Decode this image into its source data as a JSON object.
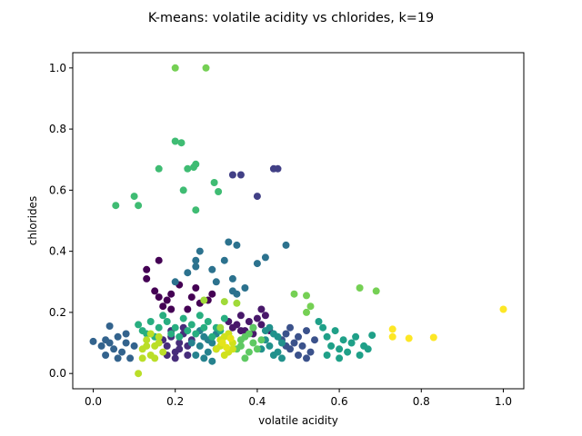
{
  "chart_data": {
    "type": "scatter",
    "title": "K-means: volatile acidity vs chlorides, k=19",
    "xlabel": "volatile acidity",
    "ylabel": "chlorides",
    "xlim": [
      -0.05,
      1.05
    ],
    "ylim": [
      -0.05,
      1.05
    ],
    "xticks": [
      0.0,
      0.2,
      0.4,
      0.6,
      0.8,
      1.0
    ],
    "yticks": [
      0.0,
      0.2,
      0.4,
      0.6,
      0.8,
      1.0
    ],
    "xtick_labels": [
      "0.0",
      "0.2",
      "0.4",
      "0.6",
      "0.8",
      "1.0"
    ],
    "ytick_labels": [
      "0.0",
      "0.2",
      "0.4",
      "0.6",
      "0.8",
      "1.0"
    ],
    "grid": false,
    "k": 19,
    "colormap": "viridis",
    "clusters": [
      {
        "id": 0,
        "color": "#440154",
        "points": [
          [
            0.13,
            0.34
          ],
          [
            0.13,
            0.31
          ],
          [
            0.16,
            0.37
          ],
          [
            0.15,
            0.27
          ],
          [
            0.16,
            0.25
          ],
          [
            0.18,
            0.24
          ],
          [
            0.19,
            0.26
          ],
          [
            0.21,
            0.29
          ],
          [
            0.23,
            0.21
          ],
          [
            0.24,
            0.25
          ],
          [
            0.25,
            0.28
          ],
          [
            0.26,
            0.23
          ],
          [
            0.28,
            0.24
          ],
          [
            0.29,
            0.26
          ],
          [
            0.19,
            0.21
          ],
          [
            0.17,
            0.22
          ]
        ]
      },
      {
        "id": 1,
        "color": "#48186a",
        "points": [
          [
            0.35,
            0.16
          ],
          [
            0.36,
            0.19
          ],
          [
            0.37,
            0.14
          ],
          [
            0.38,
            0.17
          ],
          [
            0.39,
            0.15
          ],
          [
            0.4,
            0.18
          ],
          [
            0.41,
            0.16
          ],
          [
            0.39,
            0.13
          ],
          [
            0.36,
            0.14
          ],
          [
            0.42,
            0.19
          ],
          [
            0.33,
            0.17
          ],
          [
            0.34,
            0.15
          ],
          [
            0.41,
            0.21
          ],
          [
            0.43,
            0.14
          ]
        ]
      },
      {
        "id": 2,
        "color": "#472d7b",
        "points": [
          [
            0.18,
            0.09
          ],
          [
            0.19,
            0.12
          ],
          [
            0.2,
            0.07
          ],
          [
            0.21,
            0.1
          ],
          [
            0.22,
            0.13
          ],
          [
            0.2,
            0.05
          ],
          [
            0.23,
            0.09
          ],
          [
            0.24,
            0.11
          ],
          [
            0.18,
            0.06
          ],
          [
            0.22,
            0.15
          ],
          [
            0.19,
            0.14
          ],
          [
            0.21,
            0.08
          ],
          [
            0.17,
            0.11
          ],
          [
            0.23,
            0.06
          ]
        ]
      },
      {
        "id": 3,
        "color": "#424086",
        "points": [
          [
            0.34,
            0.65
          ],
          [
            0.36,
            0.65
          ],
          [
            0.44,
            0.67
          ],
          [
            0.45,
            0.67
          ],
          [
            0.4,
            0.58
          ]
        ]
      },
      {
        "id": 4,
        "color": "#3b528b",
        "points": [
          [
            0.46,
            0.11
          ],
          [
            0.47,
            0.13
          ],
          [
            0.48,
            0.08
          ],
          [
            0.49,
            0.1
          ],
          [
            0.5,
            0.12
          ],
          [
            0.51,
            0.09
          ],
          [
            0.52,
            0.14
          ],
          [
            0.53,
            0.07
          ],
          [
            0.5,
            0.06
          ],
          [
            0.48,
            0.15
          ],
          [
            0.54,
            0.11
          ],
          [
            0.47,
            0.09
          ],
          [
            0.52,
            0.05
          ]
        ]
      },
      {
        "id": 5,
        "color": "#33638d",
        "points": [
          [
            0.0,
            0.105
          ],
          [
            0.02,
            0.09
          ],
          [
            0.03,
            0.06
          ],
          [
            0.04,
            0.1
          ],
          [
            0.04,
            0.155
          ],
          [
            0.05,
            0.08
          ],
          [
            0.06,
            0.12
          ],
          [
            0.07,
            0.07
          ],
          [
            0.08,
            0.1
          ],
          [
            0.09,
            0.05
          ],
          [
            0.1,
            0.09
          ],
          [
            0.03,
            0.11
          ],
          [
            0.06,
            0.05
          ],
          [
            0.08,
            0.13
          ]
        ]
      },
      {
        "id": 6,
        "color": "#2c728e",
        "points": [
          [
            0.33,
            0.43
          ],
          [
            0.35,
            0.42
          ],
          [
            0.26,
            0.4
          ],
          [
            0.25,
            0.37
          ],
          [
            0.25,
            0.35
          ],
          [
            0.32,
            0.37
          ],
          [
            0.4,
            0.36
          ],
          [
            0.42,
            0.38
          ],
          [
            0.47,
            0.42
          ],
          [
            0.34,
            0.31
          ],
          [
            0.23,
            0.33
          ],
          [
            0.29,
            0.34
          ],
          [
            0.2,
            0.3
          ],
          [
            0.34,
            0.27
          ],
          [
            0.35,
            0.26
          ],
          [
            0.37,
            0.28
          ],
          [
            0.3,
            0.3
          ]
        ]
      },
      {
        "id": 7,
        "color": "#26828e",
        "points": [
          [
            0.26,
            0.09
          ],
          [
            0.27,
            0.12
          ],
          [
            0.28,
            0.07
          ],
          [
            0.29,
            0.1
          ],
          [
            0.25,
            0.06
          ],
          [
            0.3,
            0.13
          ],
          [
            0.27,
            0.05
          ],
          [
            0.26,
            0.14
          ],
          [
            0.28,
            0.11
          ],
          [
            0.24,
            0.1
          ],
          [
            0.29,
            0.04
          ],
          [
            0.3,
            0.08
          ]
        ]
      },
      {
        "id": 8,
        "color": "#21918c",
        "points": [
          [
            0.42,
            0.11
          ],
          [
            0.43,
            0.09
          ],
          [
            0.44,
            0.13
          ],
          [
            0.45,
            0.07
          ],
          [
            0.46,
            0.1
          ],
          [
            0.43,
            0.15
          ],
          [
            0.41,
            0.08
          ],
          [
            0.45,
            0.12
          ],
          [
            0.44,
            0.06
          ],
          [
            0.42,
            0.14
          ],
          [
            0.46,
            0.05
          ]
        ]
      },
      {
        "id": 9,
        "color": "#1fa088",
        "points": [
          [
            0.55,
            0.17
          ],
          [
            0.56,
            0.15
          ],
          [
            0.57,
            0.12
          ],
          [
            0.58,
            0.09
          ],
          [
            0.59,
            0.14
          ],
          [
            0.6,
            0.08
          ],
          [
            0.61,
            0.11
          ],
          [
            0.62,
            0.07
          ],
          [
            0.63,
            0.1
          ],
          [
            0.65,
            0.06
          ],
          [
            0.66,
            0.09
          ],
          [
            0.67,
            0.08
          ],
          [
            0.6,
            0.05
          ],
          [
            0.64,
            0.12
          ],
          [
            0.68,
            0.125
          ],
          [
            0.57,
            0.06
          ]
        ]
      },
      {
        "id": 10,
        "color": "#28ae80",
        "points": [
          [
            0.11,
            0.16
          ],
          [
            0.12,
            0.14
          ],
          [
            0.14,
            0.17
          ],
          [
            0.16,
            0.15
          ],
          [
            0.17,
            0.19
          ],
          [
            0.18,
            0.17
          ],
          [
            0.2,
            0.15
          ],
          [
            0.22,
            0.18
          ],
          [
            0.24,
            0.16
          ],
          [
            0.26,
            0.19
          ],
          [
            0.28,
            0.17
          ],
          [
            0.3,
            0.15
          ],
          [
            0.32,
            0.18
          ],
          [
            0.13,
            0.13
          ],
          [
            0.15,
            0.12
          ],
          [
            0.19,
            0.13
          ],
          [
            0.21,
            0.12
          ],
          [
            0.23,
            0.14
          ],
          [
            0.25,
            0.13
          ],
          [
            0.27,
            0.15
          ],
          [
            0.29,
            0.12
          ],
          [
            0.31,
            0.14
          ],
          [
            0.33,
            0.13
          ]
        ]
      },
      {
        "id": 11,
        "color": "#3fbc73",
        "points": [
          [
            0.11,
            0.55
          ],
          [
            0.055,
            0.55
          ],
          [
            0.1,
            0.58
          ],
          [
            0.16,
            0.67
          ],
          [
            0.2,
            0.76
          ],
          [
            0.215,
            0.755
          ],
          [
            0.23,
            0.67
          ],
          [
            0.245,
            0.675
          ],
          [
            0.25,
            0.685
          ],
          [
            0.22,
            0.6
          ],
          [
            0.25,
            0.535
          ],
          [
            0.295,
            0.625
          ],
          [
            0.305,
            0.595
          ]
        ]
      },
      {
        "id": 12,
        "color": "#5ec962",
        "points": [
          [
            0.36,
            0.09
          ],
          [
            0.37,
            0.12
          ],
          [
            0.38,
            0.07
          ],
          [
            0.39,
            0.1
          ],
          [
            0.38,
            0.13
          ],
          [
            0.4,
            0.08
          ],
          [
            0.37,
            0.05
          ],
          [
            0.39,
            0.15
          ],
          [
            0.36,
            0.11
          ],
          [
            0.41,
            0.11
          ],
          [
            0.35,
            0.08
          ]
        ]
      },
      {
        "id": 13,
        "color": "#75d054",
        "points": [
          [
            0.2,
            1.0
          ],
          [
            0.275,
            1.0
          ],
          [
            0.49,
            0.26
          ],
          [
            0.52,
            0.255
          ],
          [
            0.53,
            0.22
          ],
          [
            0.52,
            0.2
          ],
          [
            0.65,
            0.28
          ],
          [
            0.69,
            0.27
          ]
        ]
      },
      {
        "id": 14,
        "color": "#a0da39",
        "points": [
          [
            0.32,
            0.235
          ],
          [
            0.35,
            0.23
          ],
          [
            0.27,
            0.24
          ],
          [
            0.31,
            0.15
          ]
        ]
      },
      {
        "id": 15,
        "color": "#bade28",
        "points": [
          [
            0.11,
            0.0
          ],
          [
            0.12,
            0.08
          ],
          [
            0.13,
            0.11
          ],
          [
            0.14,
            0.06
          ],
          [
            0.15,
            0.09
          ],
          [
            0.16,
            0.12
          ],
          [
            0.17,
            0.07
          ],
          [
            0.14,
            0.13
          ],
          [
            0.12,
            0.05
          ],
          [
            0.16,
            0.1
          ],
          [
            0.13,
            0.09
          ],
          [
            0.15,
            0.05
          ]
        ]
      },
      {
        "id": 16,
        "color": "#d0e11c",
        "points": [
          [
            0.31,
            0.09
          ],
          [
            0.32,
            0.12
          ],
          [
            0.33,
            0.07
          ],
          [
            0.34,
            0.1
          ],
          [
            0.32,
            0.06
          ],
          [
            0.33,
            0.13
          ],
          [
            0.31,
            0.11
          ],
          [
            0.3,
            0.08
          ],
          [
            0.34,
            0.08
          ]
        ]
      },
      {
        "id": 17,
        "color": "#e5e419",
        "points": [
          [
            0.315,
            0.1
          ],
          [
            0.325,
            0.085
          ],
          [
            0.335,
            0.115
          ]
        ]
      },
      {
        "id": 18,
        "color": "#fde725",
        "points": [
          [
            1.0,
            0.21
          ],
          [
            0.73,
            0.145
          ],
          [
            0.73,
            0.12
          ],
          [
            0.77,
            0.115
          ],
          [
            0.83,
            0.118
          ]
        ]
      }
    ]
  }
}
